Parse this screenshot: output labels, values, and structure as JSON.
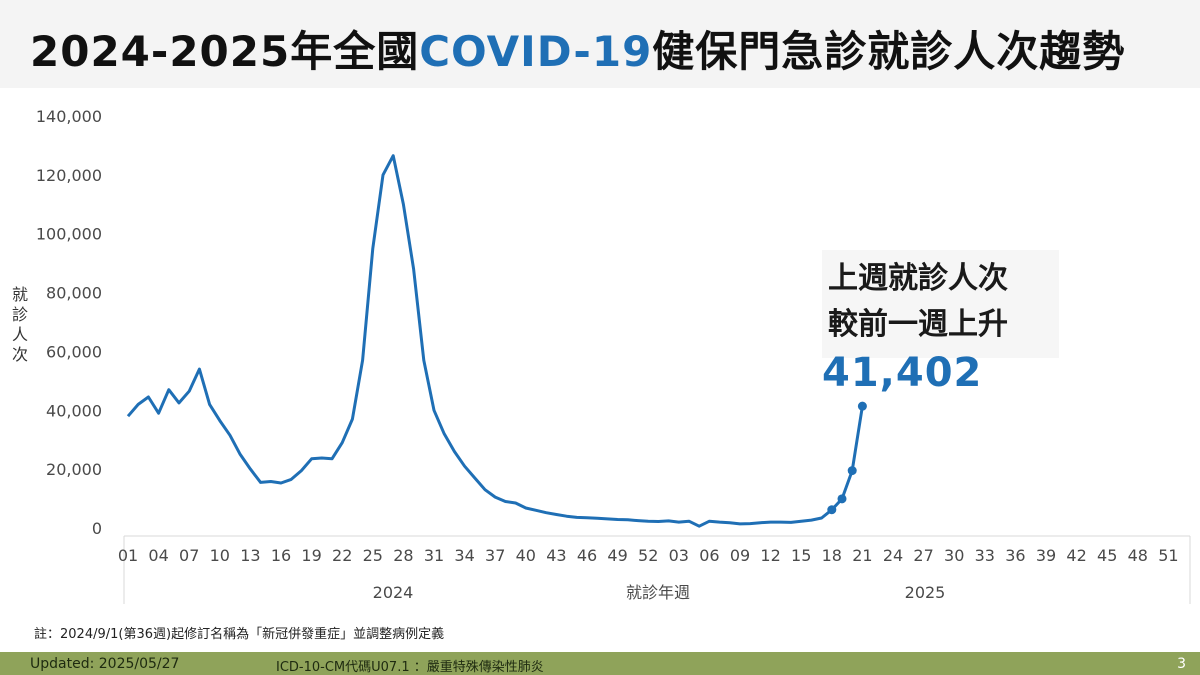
{
  "header": {
    "title_pre": "2024-2025年全國",
    "title_highlight": "COVID-19",
    "title_post": "健保門急診就診人次趨勢"
  },
  "callout": {
    "line1": "上週就診人次",
    "line2": "較前一週上升",
    "value": "41,402"
  },
  "note": "註：2024/9/1(第36週)起修訂名稱為「新冠併發重症」並調整病例定義",
  "footer": {
    "updated": "Updated: 2025/05/27",
    "icd": "ICD-10-CM代碼U07.1 ：嚴重特殊傳染性肺炎",
    "page": "3"
  },
  "colors": {
    "accent": "#1f6fb5",
    "footer_bg": "#8fa35a"
  },
  "chart_data": {
    "type": "line",
    "title": "2024-2025年全國COVID-19健保門急診就診人次趨勢",
    "xlabel": "就診年週",
    "ylabel": "就診人次",
    "ylim": [
      0,
      140000
    ],
    "yticks": [
      0,
      20000,
      40000,
      60000,
      80000,
      100000,
      120000,
      140000
    ],
    "ytick_labels": [
      "0",
      "20,000",
      "40,000",
      "60,000",
      "80,000",
      "100,000",
      "120,000",
      "140,000"
    ],
    "x_tick_labels": [
      "01",
      "04",
      "07",
      "10",
      "13",
      "16",
      "19",
      "22",
      "25",
      "28",
      "31",
      "34",
      "37",
      "40",
      "43",
      "46",
      "49",
      "52",
      "03",
      "06",
      "09",
      "12",
      "15",
      "18",
      "21",
      "24",
      "27",
      "30",
      "33",
      "36",
      "39",
      "42",
      "45",
      "48",
      "51"
    ],
    "year_labels": [
      "2024",
      "2025"
    ],
    "grid": false,
    "series": [
      {
        "values": [
          38000,
          42000,
          44500,
          39000,
          47000,
          42500,
          46500,
          54000,
          42000,
          36500,
          31500,
          25000,
          20000,
          15500,
          15800,
          15300,
          16500,
          19500,
          23500,
          23800,
          23500,
          29000,
          37000,
          57000,
          95000,
          120000,
          126500,
          110000,
          88000,
          57000,
          40000,
          32000,
          26000,
          21000,
          17000,
          13000,
          10500,
          9000,
          8500,
          6800,
          6000,
          5200,
          4600,
          4000,
          3600,
          3500,
          3300,
          3100,
          2900,
          2800,
          2500,
          2300,
          2200,
          2400,
          2000,
          2300,
          600,
          2300,
          2000,
          1800,
          1400,
          1500,
          1800,
          2000,
          2000,
          1900,
          2300,
          2700,
          3400,
          6200,
          9900,
          19500,
          41402
        ],
        "highlight_from_index": 69
      }
    ]
  }
}
